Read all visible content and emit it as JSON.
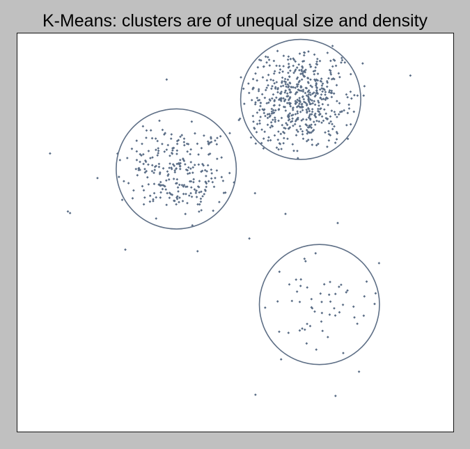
{
  "title": "K-Means: clusters are of unequal size and density",
  "colors": {
    "points": "#5a6d86",
    "circles": "#5e6f86",
    "plot_bg": "#ffffff",
    "figure_bg": "#c0c0c0"
  },
  "chart_data": {
    "type": "scatter",
    "title": "K-Means: clusters are of unequal size and density",
    "xlabel": "",
    "ylabel": "",
    "xlim": [
      0,
      100
    ],
    "ylim": [
      0,
      100
    ],
    "ticks": "none",
    "grid": false,
    "legend": "none",
    "clusters": [
      {
        "center": [
          36.5,
          65.9
        ],
        "radius": 13.8,
        "n_points": 260,
        "spread": 6.5,
        "outlier_extent": 16.8
      },
      {
        "center": [
          65.1,
          83.4
        ],
        "radius": 13.8,
        "n_points": 560,
        "spread": 7.0,
        "outlier_extent": 18.0
      },
      {
        "center": [
          69.4,
          31.8
        ],
        "radius": 13.8,
        "n_points": 56,
        "spread": 8.5,
        "outlier_extent": 13.5
      }
    ],
    "outliers": [
      [
        7.5,
        69.8
      ],
      [
        11.6,
        55.2
      ],
      [
        12.1,
        54.8
      ],
      [
        18.4,
        63.6
      ],
      [
        24.8,
        45.6
      ],
      [
        34.3,
        88.4
      ],
      [
        40.2,
        51.7
      ],
      [
        41.4,
        45.2
      ],
      [
        43.8,
        72.8
      ],
      [
        48.8,
        74.9
      ],
      [
        50.9,
        78.2
      ],
      [
        53.3,
        48.4
      ],
      [
        54.6,
        59.8
      ],
      [
        54.7,
        9.1
      ],
      [
        60.6,
        18.0
      ],
      [
        61.6,
        54.6
      ],
      [
        73.6,
        52.3
      ],
      [
        73.1,
        8.8
      ],
      [
        78.5,
        14.9
      ],
      [
        90.3,
        89.4
      ],
      [
        83.1,
        42.2
      ]
    ]
  }
}
